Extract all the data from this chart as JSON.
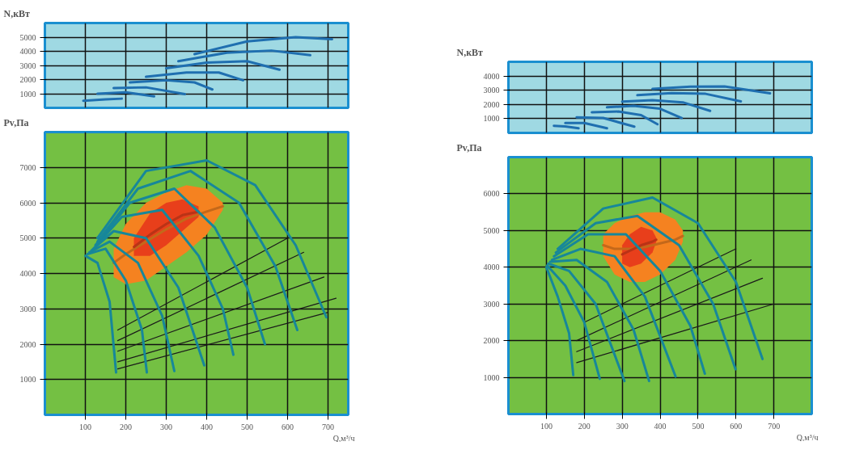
{
  "chart_data": [
    {
      "type": "line",
      "ylabel": "N,кВт",
      "xlim": [
        0,
        750
      ],
      "ylim": [
        0,
        6000
      ],
      "xticks": [
        100,
        200,
        300,
        400,
        500,
        600,
        700
      ],
      "yticks": [
        1000,
        2000,
        3000,
        4000,
        5000
      ],
      "grid": true,
      "tick_labels": "y",
      "series": [
        {
          "color": "#1f6fb0",
          "x": [
            95,
            150,
            190
          ],
          "values": [
            500,
            600,
            650
          ]
        },
        {
          "color": "#1f6fb0",
          "x": [
            130,
            200,
            270
          ],
          "values": [
            1000,
            1100,
            810
          ]
        },
        {
          "color": "#1f6fb0",
          "x": [
            170,
            250,
            346
          ],
          "values": [
            1400,
            1450,
            970
          ]
        },
        {
          "color": "#1f6fb0",
          "x": [
            210,
            300,
            370,
            414
          ],
          "values": [
            1800,
            1950,
            1800,
            1300
          ]
        },
        {
          "color": "#1f6fb0",
          "x": [
            250,
            350,
            430,
            490
          ],
          "values": [
            2200,
            2500,
            2500,
            1950
          ]
        },
        {
          "color": "#1f6fb0",
          "x": [
            300,
            400,
            500,
            580
          ],
          "values": [
            2800,
            3200,
            3300,
            2700
          ]
        },
        {
          "color": "#1f6fb0",
          "x": [
            330,
            450,
            560,
            656
          ],
          "values": [
            3300,
            3900,
            4050,
            3730
          ]
        },
        {
          "color": "#1f6fb0",
          "x": [
            370,
            500,
            620,
            710
          ],
          "values": [
            3800,
            4700,
            5000,
            4860
          ]
        }
      ]
    },
    {
      "type": "line",
      "ylabel": "Pv,Па",
      "xlabel": "Q,м³/ч",
      "xlim": [
        0,
        750
      ],
      "ylim": [
        0,
        8000
      ],
      "xticks": [
        100,
        200,
        300,
        400,
        500,
        600,
        700
      ],
      "yticks": [
        1000,
        2000,
        3000,
        4000,
        5000,
        6000,
        7000
      ],
      "grid": true,
      "series": [
        {
          "color": "#c4681a",
          "x": [
            170,
            200,
            250,
            300,
            350,
            400,
            440
          ],
          "values": [
            4300,
            4550,
            4900,
            5250,
            5550,
            5750,
            5900
          ],
          "lower": [
            3900,
            3700,
            3800,
            4200,
            4600,
            5100,
            5800
          ],
          "upper": [
            4700,
            5400,
            6000,
            6300,
            6500,
            6400,
            6000
          ]
        },
        {
          "color": "#ba3316",
          "x": [
            220,
            260,
            300,
            340,
            380
          ],
          "values": [
            4750,
            5100,
            5400,
            5650,
            5750
          ],
          "lower": [
            4500,
            4500,
            4800,
            5200,
            5600
          ],
          "upper": [
            5000,
            5700,
            6000,
            6100,
            5900
          ]
        },
        {
          "color": "#1a1a1a",
          "x": [
            180,
            700
          ],
          "values": [
            1300,
            2900
          ]
        },
        {
          "color": "#1a1a1a",
          "x": [
            180,
            720
          ],
          "values": [
            1500,
            3300
          ]
        },
        {
          "color": "#1a1a1a",
          "x": [
            180,
            690
          ],
          "values": [
            1800,
            3900
          ]
        },
        {
          "color": "#1a1a1a",
          "x": [
            180,
            640
          ],
          "values": [
            2100,
            4600
          ]
        },
        {
          "color": "#1a1a1a",
          "x": [
            180,
            600
          ],
          "values": [
            2400,
            5000
          ]
        },
        {
          "color": "#17879a",
          "x": [
            100,
            130,
            160,
            176
          ],
          "values": [
            4500,
            4300,
            3200,
            1200
          ]
        },
        {
          "color": "#17879a",
          "x": [
            105,
            150,
            200,
            240,
            252
          ],
          "values": [
            4550,
            4700,
            3800,
            2400,
            1200
          ]
        },
        {
          "color": "#17879a",
          "x": [
            110,
            160,
            230,
            290,
            320
          ],
          "values": [
            4600,
            4900,
            4300,
            2800,
            1240
          ]
        },
        {
          "color": "#17879a",
          "x": [
            115,
            170,
            250,
            330,
            394
          ],
          "values": [
            4650,
            5200,
            5000,
            3600,
            1400
          ]
        },
        {
          "color": "#17879a",
          "x": [
            120,
            190,
            290,
            380,
            440,
            466
          ],
          "values": [
            4700,
            5600,
            5800,
            4500,
            3000,
            1700
          ]
        },
        {
          "color": "#17879a",
          "x": [
            125,
            210,
            320,
            420,
            500,
            544
          ],
          "values": [
            4800,
            6000,
            6400,
            5300,
            3600,
            2000
          ]
        },
        {
          "color": "#17879a",
          "x": [
            130,
            230,
            360,
            480,
            570,
            624
          ],
          "values": [
            4900,
            6400,
            6900,
            6000,
            4200,
            2400
          ]
        },
        {
          "color": "#17879a",
          "x": [
            130,
            250,
            400,
            520,
            620,
            696
          ],
          "values": [
            5000,
            6900,
            7200,
            6500,
            4800,
            2760
          ]
        }
      ]
    },
    {
      "type": "line",
      "ylabel": "N,кВт",
      "xlim": [
        0,
        800
      ],
      "ylim": [
        0,
        5000
      ],
      "xticks": [
        100,
        200,
        300,
        400,
        500,
        600,
        700
      ],
      "yticks": [
        1000,
        2000,
        3000,
        4000
      ],
      "grid": true,
      "tick_labels": "y",
      "series": [
        {
          "color": "#1f6fb0",
          "x": [
            120,
            150,
            185
          ],
          "values": [
            500,
            450,
            330
          ]
        },
        {
          "color": "#1f6fb0",
          "x": [
            150,
            200,
            260
          ],
          "values": [
            700,
            700,
            330
          ]
        },
        {
          "color": "#1f6fb0",
          "x": [
            180,
            250,
            332
          ],
          "values": [
            1100,
            1050,
            440
          ]
        },
        {
          "color": "#1f6fb0",
          "x": [
            220,
            290,
            350,
            393
          ],
          "values": [
            1450,
            1500,
            1250,
            610
          ]
        },
        {
          "color": "#1f6fb0",
          "x": [
            260,
            330,
            400,
            457
          ],
          "values": [
            1800,
            1900,
            1700,
            1050
          ]
        },
        {
          "color": "#1f6fb0",
          "x": [
            300,
            380,
            460,
            532
          ],
          "values": [
            2200,
            2300,
            2150,
            1550
          ]
        },
        {
          "color": "#1f6fb0",
          "x": [
            340,
            430,
            520,
            613
          ],
          "values": [
            2650,
            2800,
            2750,
            2220
          ]
        },
        {
          "color": "#1f6fb0",
          "x": [
            380,
            480,
            570,
            690
          ],
          "values": [
            3100,
            3250,
            3270,
            2780
          ]
        }
      ]
    },
    {
      "type": "line",
      "ylabel": "Pv,Па",
      "xlabel": "Q,м³/ч",
      "xlim": [
        0,
        800
      ],
      "ylim": [
        0,
        7000
      ],
      "xticks": [
        100,
        200,
        300,
        400,
        500,
        600,
        700
      ],
      "yticks": [
        1000,
        2000,
        3000,
        4000,
        5000,
        6000
      ],
      "grid": true,
      "series": [
        {
          "color": "#c4681a",
          "x": [
            250,
            280,
            320,
            360,
            400,
            440,
            460
          ],
          "values": [
            4600,
            4500,
            4500,
            4550,
            4650,
            4750,
            4850
          ],
          "lower": [
            4300,
            3800,
            3600,
            3600,
            3800,
            4200,
            4700
          ],
          "upper": [
            4900,
            5200,
            5400,
            5500,
            5500,
            5300,
            5000
          ]
        },
        {
          "color": "#ba3316",
          "x": [
            300,
            320,
            350,
            380,
            390
          ],
          "values": [
            4350,
            4450,
            4600,
            4700,
            4750
          ],
          "lower": [
            4100,
            4000,
            4100,
            4400,
            4700
          ],
          "upper": [
            4600,
            4900,
            5100,
            5000,
            4800
          ]
        },
        {
          "color": "#1a1a1a",
          "x": [
            180,
            700
          ],
          "values": [
            1400,
            3000
          ]
        },
        {
          "color": "#1a1a1a",
          "x": [
            180,
            670
          ],
          "values": [
            1700,
            3700
          ]
        },
        {
          "color": "#1a1a1a",
          "x": [
            180,
            640
          ],
          "values": [
            2000,
            4200
          ]
        },
        {
          "color": "#1a1a1a",
          "x": [
            200,
            600
          ],
          "values": [
            2500,
            4500
          ]
        },
        {
          "color": "#17879a",
          "x": [
            100,
            130,
            160,
            171
          ],
          "values": [
            4000,
            3200,
            2200,
            1060
          ]
        },
        {
          "color": "#17879a",
          "x": [
            102,
            150,
            200,
            241
          ],
          "values": [
            4050,
            3500,
            2500,
            960
          ]
        },
        {
          "color": "#17879a",
          "x": [
            105,
            160,
            230,
            306
          ],
          "values": [
            4100,
            3900,
            3000,
            900
          ]
        },
        {
          "color": "#17879a",
          "x": [
            110,
            180,
            260,
            330,
            371
          ],
          "values": [
            4150,
            4200,
            3600,
            2300,
            900
          ]
        },
        {
          "color": "#17879a",
          "x": [
            115,
            190,
            280,
            360,
            441
          ],
          "values": [
            4200,
            4500,
            4300,
            3200,
            1020
          ]
        },
        {
          "color": "#17879a",
          "x": [
            120,
            210,
            310,
            400,
            480,
            518
          ],
          "values": [
            4300,
            4900,
            4900,
            3900,
            2400,
            1100
          ]
        },
        {
          "color": "#17879a",
          "x": [
            125,
            230,
            340,
            450,
            540,
            599
          ],
          "values": [
            4400,
            5200,
            5400,
            4600,
            3000,
            1220
          ]
        },
        {
          "color": "#17879a",
          "x": [
            130,
            250,
            380,
            500,
            600,
            670
          ],
          "values": [
            4500,
            5600,
            5900,
            5200,
            3600,
            1500
          ]
        }
      ]
    }
  ]
}
